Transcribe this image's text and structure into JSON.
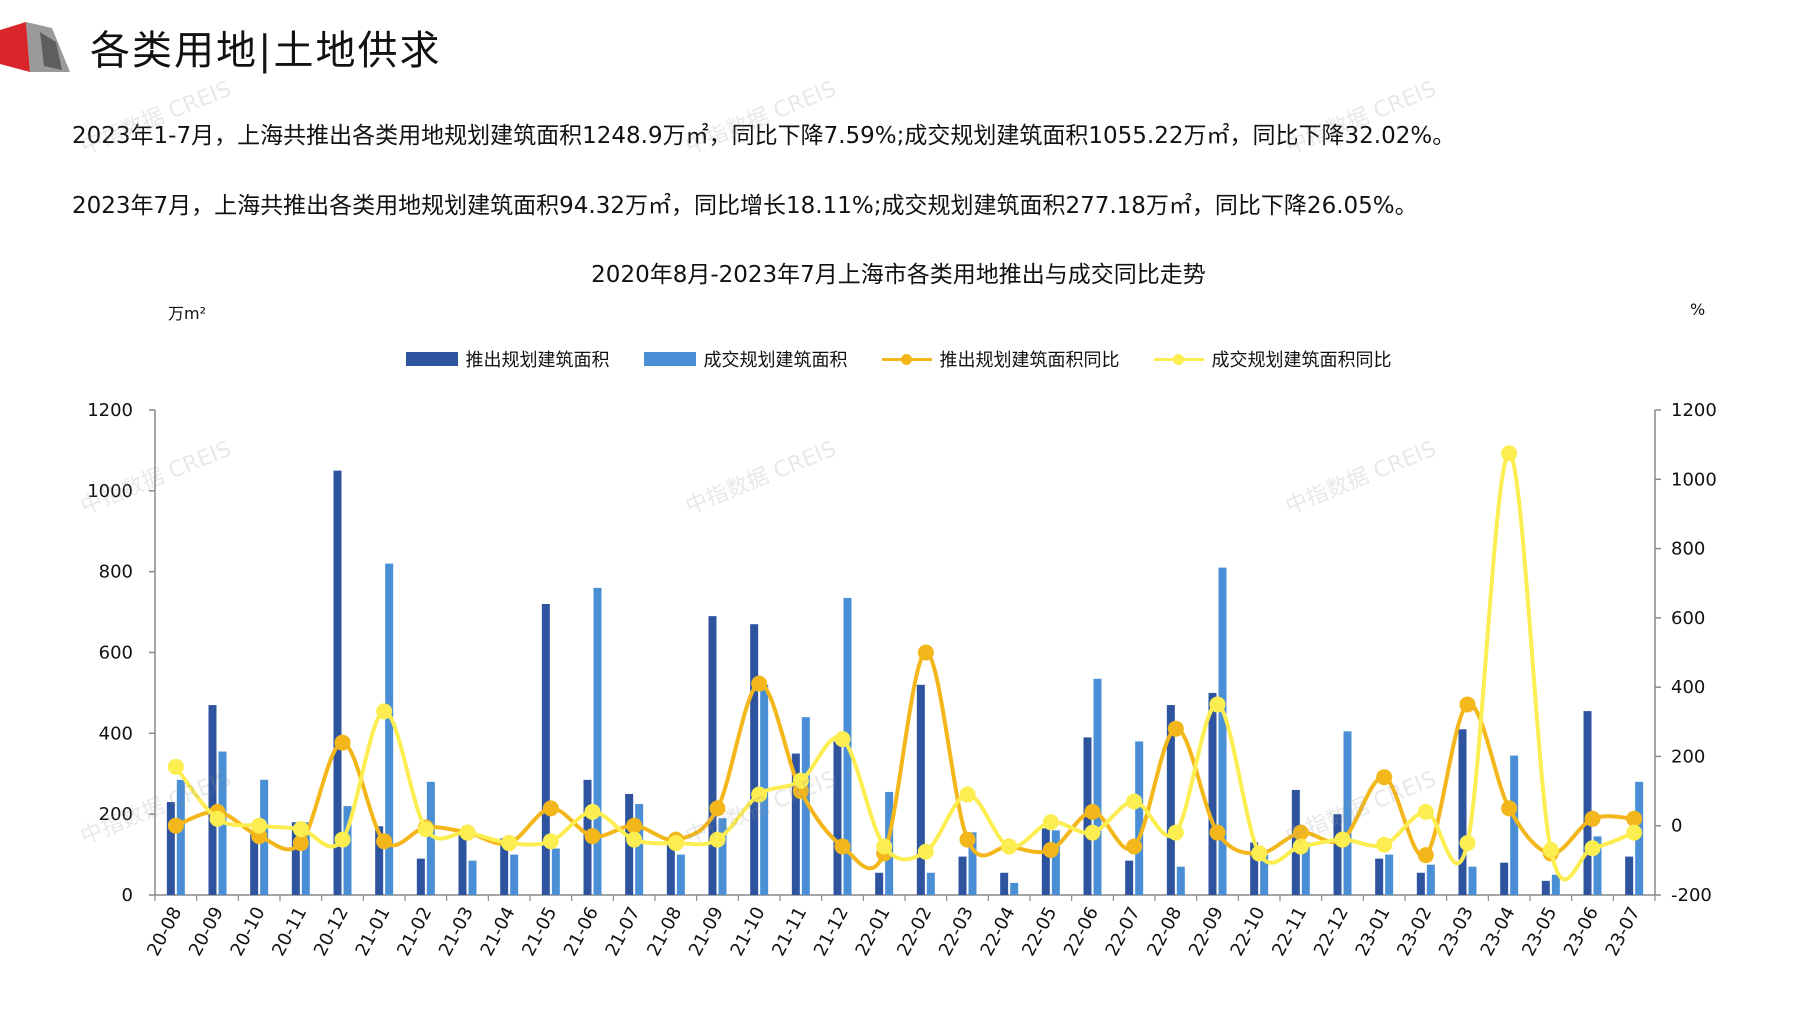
{
  "header": {
    "title": "各类用地|土地供求"
  },
  "summary": {
    "line1": "2023年1-7月，上海共推出各类用地规划建筑面积1248.9万㎡，同比下降7.59%;成交规划建筑面积1055.22万㎡，同比下降32.02%。",
    "line2": "2023年7月，上海共推出各类用地规划建筑面积94.32万㎡，同比增长18.11%;成交规划建筑面积277.18万㎡，同比下降26.05%。"
  },
  "watermark": "中指数据 CREIS",
  "colors": {
    "supply_bar": "#2e54a0",
    "deal_bar": "#4a8fd6",
    "supply_line": "#f4b71b",
    "deal_line": "#fcee50",
    "axis": "#888888"
  },
  "chart_data": {
    "type": "bar",
    "title": "2020年8月-2023年7月上海市各类用地推出与成交同比走势",
    "ylabel_left": "万m²",
    "ylabel_right": "%",
    "ylim_left": [
      0,
      1200
    ],
    "ylim_right": [
      -200,
      1200
    ],
    "yticks_left": [
      0,
      200,
      400,
      600,
      800,
      1000,
      1200
    ],
    "yticks_right": [
      -200,
      0,
      200,
      400,
      600,
      800,
      1000,
      1200
    ],
    "legend_position": "top-center",
    "categories": [
      "20-08",
      "20-09",
      "20-10",
      "20-11",
      "20-12",
      "21-01",
      "21-02",
      "21-03",
      "21-04",
      "21-05",
      "21-06",
      "21-07",
      "21-08",
      "21-09",
      "21-10",
      "21-11",
      "21-12",
      "22-01",
      "22-02",
      "22-03",
      "22-04",
      "22-05",
      "22-06",
      "22-07",
      "22-08",
      "22-09",
      "22-10",
      "22-11",
      "22-12",
      "23-01",
      "23-02",
      "23-03",
      "23-04",
      "23-05",
      "23-06",
      "23-07"
    ],
    "series": [
      {
        "name": "推出规划建筑面积",
        "type": "bar",
        "axis": "left",
        "values": [
          230,
          470,
          150,
          180,
          1050,
          170,
          90,
          160,
          140,
          720,
          285,
          250,
          130,
          690,
          670,
          350,
          380,
          55,
          520,
          95,
          55,
          165,
          390,
          85,
          470,
          500,
          130,
          260,
          200,
          90,
          55,
          410,
          80,
          35,
          455,
          95
        ]
      },
      {
        "name": "成交规划建筑面积",
        "type": "bar",
        "axis": "left",
        "values": [
          285,
          355,
          285,
          180,
          220,
          820,
          280,
          85,
          100,
          115,
          760,
          225,
          100,
          190,
          520,
          440,
          735,
          255,
          55,
          155,
          30,
          160,
          535,
          380,
          70,
          810,
          100,
          130,
          405,
          100,
          75,
          70,
          345,
          50,
          145,
          280
        ]
      },
      {
        "name": "推出规划建筑面积同比",
        "type": "line",
        "axis": "right",
        "values": [
          0,
          40,
          -30,
          -50,
          240,
          -45,
          -5,
          -20,
          -50,
          50,
          -30,
          0,
          -40,
          50,
          410,
          100,
          -60,
          -80,
          500,
          -40,
          -60,
          -70,
          40,
          -60,
          280,
          -20,
          -80,
          -20,
          -40,
          140,
          -85,
          350,
          50,
          -80,
          20,
          20
        ]
      },
      {
        "name": "成交规划建筑面积同比",
        "type": "line",
        "axis": "right",
        "values": [
          170,
          20,
          0,
          -10,
          -40,
          330,
          -10,
          -20,
          -50,
          -45,
          40,
          -40,
          -50,
          -40,
          90,
          130,
          250,
          -60,
          -75,
          90,
          -60,
          10,
          -20,
          70,
          -20,
          350,
          -80,
          -60,
          -40,
          -55,
          40,
          -50,
          1075,
          -70,
          -65,
          -20
        ]
      }
    ]
  }
}
